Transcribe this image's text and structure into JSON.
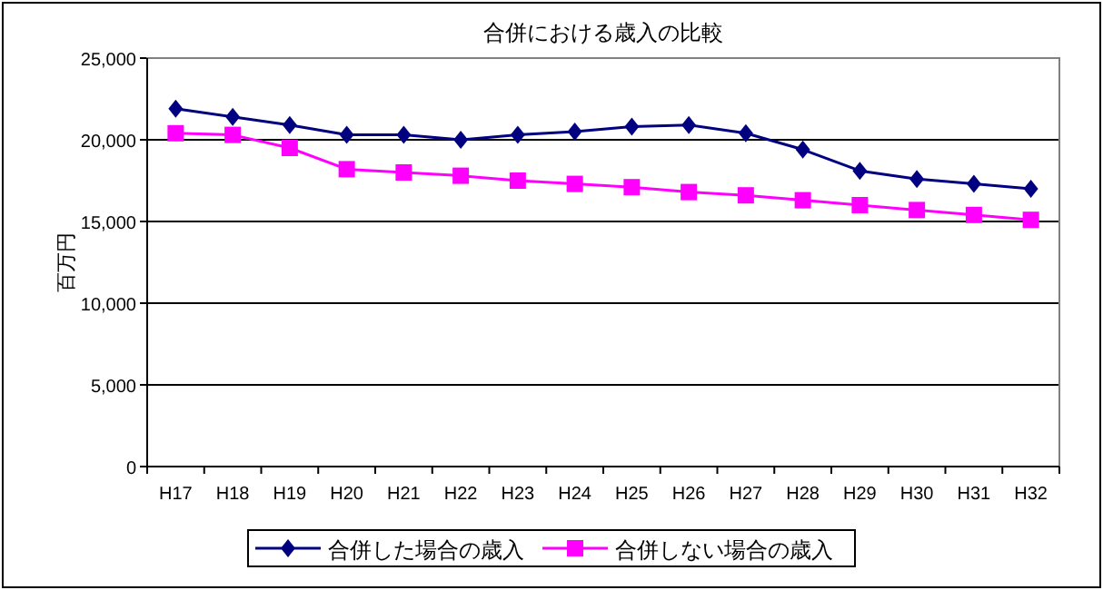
{
  "chart_data": {
    "type": "line",
    "title": "合併における歳入の比較",
    "ylabel": "百万円",
    "categories": [
      "H17",
      "H18",
      "H19",
      "H20",
      "H21",
      "H22",
      "H23",
      "H24",
      "H25",
      "H26",
      "H27",
      "H28",
      "H29",
      "H30",
      "H31",
      "H32"
    ],
    "series": [
      {
        "name": "合併した場合の歳入",
        "color": "#000080",
        "marker": "diamond",
        "values": [
          21900,
          21400,
          20900,
          20300,
          20300,
          20000,
          20300,
          20500,
          20800,
          20900,
          20400,
          19400,
          18100,
          17600,
          17300,
          17000
        ]
      },
      {
        "name": "合併しない場合の歳入",
        "color": "#ff00ff",
        "marker": "square",
        "values": [
          20400,
          20300,
          19500,
          18200,
          18000,
          17800,
          17500,
          17300,
          17100,
          16800,
          16600,
          16300,
          16000,
          15700,
          15400,
          15100
        ]
      }
    ],
    "ylim": [
      0,
      25000
    ],
    "yticks": [
      {
        "value": 0,
        "label": "0"
      },
      {
        "value": 5000,
        "label": "5,000"
      },
      {
        "value": 10000,
        "label": "10,000"
      },
      {
        "value": 15000,
        "label": "15,000"
      },
      {
        "value": 20000,
        "label": "20,000"
      },
      {
        "value": 25000,
        "label": "25,000"
      }
    ],
    "grid": "y",
    "legend": "bottom",
    "line_style": "solid"
  }
}
